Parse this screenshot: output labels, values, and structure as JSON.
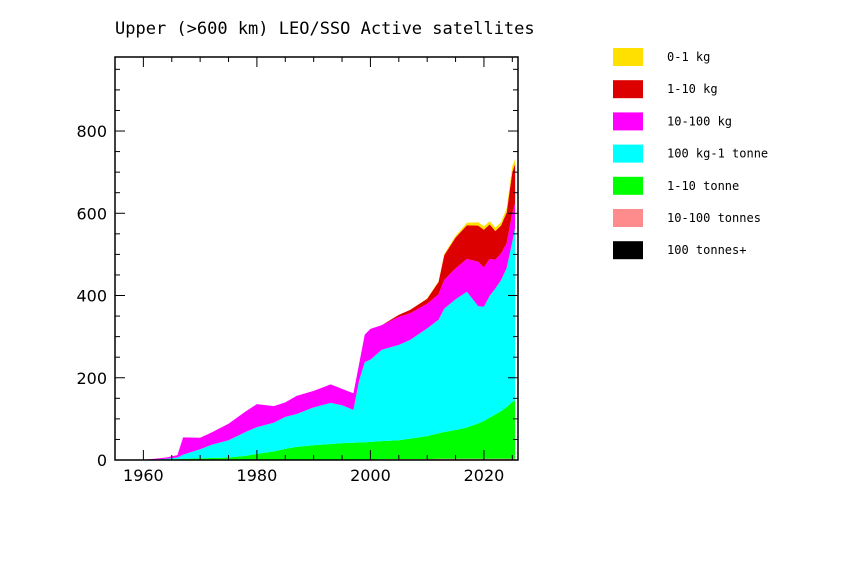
{
  "chart_data": {
    "type": "area",
    "stacked": true,
    "title": "Upper (>600 km) LEO/SSO Active satellites",
    "xlabel": "",
    "ylabel": "",
    "xlim": [
      1955,
      2026
    ],
    "ylim": [
      0,
      980
    ],
    "x_ticks": [
      "1960",
      "1980",
      "2000",
      "2020"
    ],
    "y_ticks": [
      "0",
      "200",
      "400",
      "600",
      "800"
    ],
    "legend_position": "right",
    "x": [
      1955,
      1958,
      1960,
      1962,
      1964,
      1966,
      1967,
      1970,
      1972,
      1975,
      1978,
      1980,
      1983,
      1985,
      1987,
      1990,
      1993,
      1995,
      1997,
      1998,
      1999,
      2000,
      2002,
      2005,
      2007,
      2010,
      2012,
      2013,
      2015,
      2017,
      2019,
      2020,
      2021,
      2022,
      2023,
      2024,
      2025,
      2025.5
    ],
    "series": [
      {
        "name": "100 tonnes+",
        "color": "#000000",
        "values": [
          0,
          0,
          0,
          0,
          0,
          0,
          0,
          0,
          0,
          0,
          0,
          0,
          0,
          0,
          0,
          0,
          0,
          0,
          0,
          0,
          0,
          0,
          0,
          0,
          0,
          0,
          0,
          0,
          0,
          0,
          0,
          0,
          0,
          0,
          0,
          0,
          0,
          0
        ]
      },
      {
        "name": "10-100 tonnes",
        "color": "#ff8c8c",
        "values": [
          0,
          0,
          0,
          0,
          0,
          0,
          0,
          0,
          0,
          0,
          0,
          1,
          1,
          1,
          1,
          1,
          1,
          1,
          1,
          1,
          1,
          1,
          2,
          2,
          2,
          2,
          3,
          3,
          3,
          3,
          3,
          3,
          3,
          3,
          3,
          3,
          3,
          3
        ]
      },
      {
        "name": "1-10 tonne",
        "color": "#00ff00",
        "values": [
          0,
          0,
          0,
          0,
          1,
          2,
          3,
          4,
          5,
          6,
          10,
          14,
          20,
          26,
          31,
          35,
          38,
          40,
          41,
          42,
          42,
          43,
          44,
          46,
          50,
          56,
          62,
          65,
          70,
          76,
          86,
          92,
          100,
          108,
          116,
          126,
          138,
          142
        ]
      },
      {
        "name": "100 kg-1 tonne",
        "color": "#00ffff",
        "values": [
          0,
          0,
          0,
          1,
          2,
          4,
          10,
          22,
          32,
          42,
          58,
          65,
          70,
          78,
          80,
          92,
          100,
          92,
          80,
          150,
          195,
          200,
          222,
          232,
          240,
          262,
          276,
          300,
          318,
          330,
          285,
          278,
          296,
          306,
          318,
          338,
          390,
          420
        ]
      },
      {
        "name": "10-100 kg",
        "color": "#ff00ff",
        "values": [
          0,
          0,
          1,
          2,
          3,
          6,
          42,
          28,
          30,
          40,
          50,
          56,
          40,
          35,
          44,
          40,
          45,
          40,
          40,
          40,
          67,
          75,
          60,
          68,
          65,
          60,
          62,
          70,
          75,
          80,
          108,
          95,
          90,
          70,
          65,
          60,
          70,
          60
        ]
      },
      {
        "name": "1-10 kg",
        "color": "#dd0000",
        "values": [
          0,
          0,
          0,
          0,
          0,
          0,
          0,
          0,
          0,
          0,
          0,
          0,
          0,
          0,
          0,
          0,
          0,
          0,
          0,
          0,
          0,
          0,
          0,
          5,
          8,
          12,
          30,
          60,
          75,
          82,
          88,
          92,
          84,
          70,
          68,
          75,
          100,
          95
        ]
      },
      {
        "name": "0-1 kg",
        "color": "#ffe000",
        "values": [
          0,
          0,
          0,
          0,
          0,
          0,
          0,
          0,
          0,
          0,
          0,
          0,
          0,
          0,
          0,
          0,
          0,
          0,
          0,
          0,
          0,
          0,
          0,
          0,
          0,
          1,
          2,
          3,
          4,
          6,
          8,
          8,
          8,
          8,
          8,
          10,
          14,
          12
        ]
      }
    ]
  }
}
